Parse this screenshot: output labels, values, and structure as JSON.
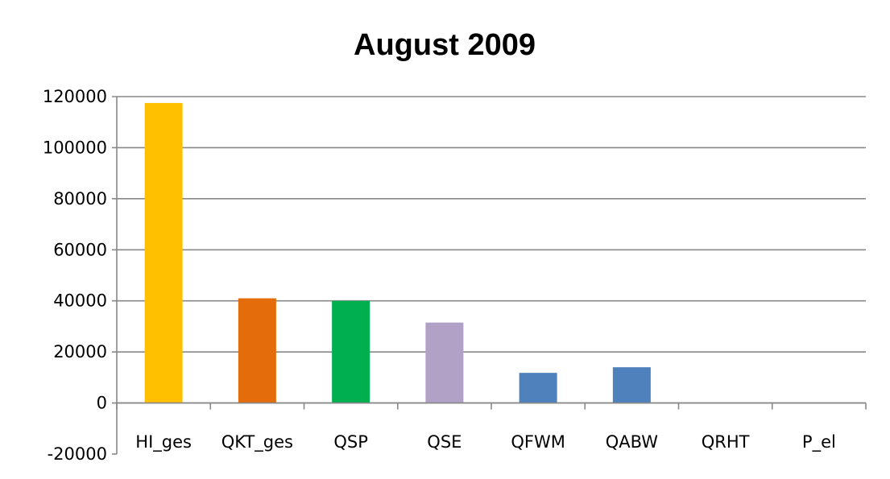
{
  "chart_data": {
    "type": "bar",
    "title": "August 2009",
    "xlabel": "",
    "ylabel": "",
    "ylim": [
      -20000,
      120000
    ],
    "ytick_step": 20000,
    "grid": true,
    "legend": "none",
    "categories": [
      "HI_ges",
      "QKT_ges",
      "QSP",
      "QSE",
      "QFWM",
      "QABW",
      "QRHT",
      "P_el"
    ],
    "values": [
      117500,
      41000,
      40000,
      31500,
      11800,
      14000,
      0,
      0
    ],
    "colors": [
      "#FFC000",
      "#E46C0A",
      "#00B050",
      "#B2A1C7",
      "#4F81BD",
      "#4F81BD",
      "#4F81BD",
      "#4F81BD"
    ]
  }
}
